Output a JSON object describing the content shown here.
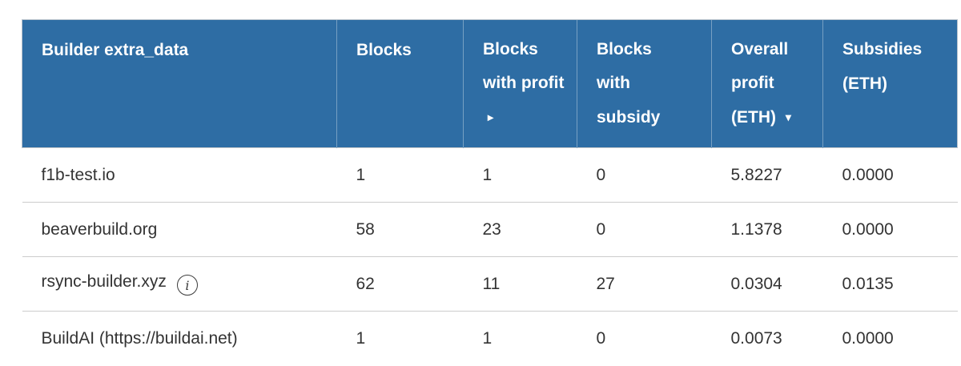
{
  "colors": {
    "header_bg": "#2e6da4",
    "header_text": "#ffffff",
    "body_text": "#333333",
    "row_border": "#cccccc",
    "outer_border": "#b9c3cd",
    "header_divider": "rgba(255,255,255,0.35)",
    "info_icon": "#3c3c3c",
    "page_bg": "#ffffff"
  },
  "icons": {
    "info_glyph": "i",
    "sort_inactive": "▸",
    "sort_descending": "▾"
  },
  "table": {
    "columns": [
      {
        "id": "builder",
        "label": "Builder extra_data",
        "sort_glyph": ""
      },
      {
        "id": "blocks",
        "label": "Blocks",
        "sort_glyph": ""
      },
      {
        "id": "blocks-with-profit",
        "label": "Blocks with profit",
        "sort_glyph": "▸"
      },
      {
        "id": "blocks-with-subsidy",
        "label": "Blocks with subsidy",
        "sort_glyph": ""
      },
      {
        "id": "overall-profit",
        "label": "Overall profit (ETH)",
        "sort_glyph": "▾"
      },
      {
        "id": "subsidies",
        "label": "Subsidies (ETH)",
        "sort_glyph": ""
      }
    ],
    "rows": [
      {
        "cells": [
          "f1b-test.io",
          "1",
          "1",
          "0",
          "5.8227",
          "0.0000"
        ],
        "has_info_icon": false
      },
      {
        "cells": [
          "beaverbuild.org",
          "58",
          "23",
          "0",
          "1.1378",
          "0.0000"
        ],
        "has_info_icon": false
      },
      {
        "cells": [
          "rsync-builder.xyz",
          "62",
          "11",
          "27",
          "0.0304",
          "0.0135"
        ],
        "has_info_icon": true
      },
      {
        "cells": [
          "BuildAI (https://buildai.net)",
          "1",
          "1",
          "0",
          "0.0073",
          "0.0000"
        ],
        "has_info_icon": false
      }
    ]
  }
}
